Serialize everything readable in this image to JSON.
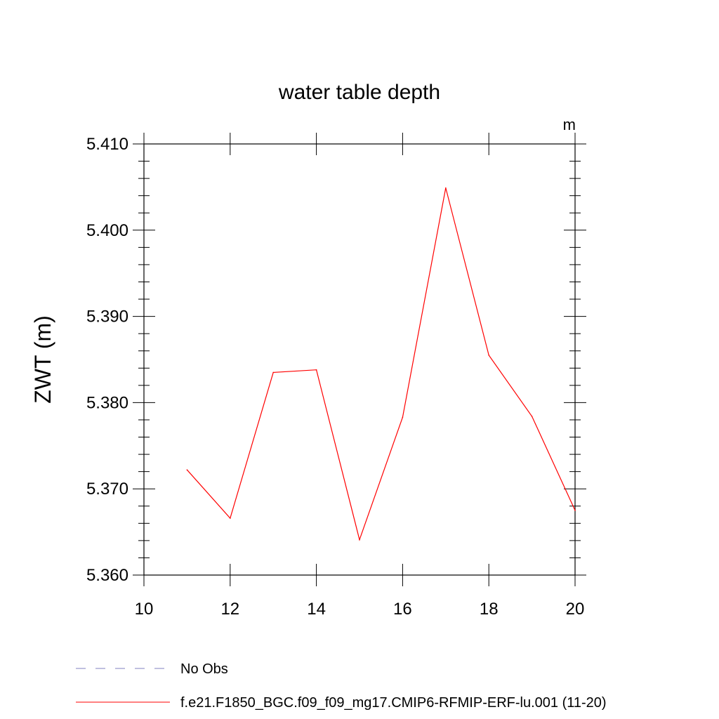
{
  "chart_data": {
    "type": "line",
    "title": "water table depth",
    "units": "m",
    "xlabel": "",
    "ylabel": "ZWT  (m)",
    "xlim": [
      10,
      20
    ],
    "ylim": [
      5.36,
      5.41
    ],
    "x_ticks": [
      10,
      12,
      14,
      16,
      18,
      20
    ],
    "x_tick_labels": [
      "10",
      "12",
      "14",
      "16",
      "18",
      "20"
    ],
    "y_ticks": [
      5.36,
      5.37,
      5.38,
      5.39,
      5.4,
      5.41
    ],
    "y_tick_labels": [
      "5.360",
      "5.370",
      "5.380",
      "5.390",
      "5.400",
      "5.410"
    ],
    "grid": false,
    "legend_position": "bottom",
    "series": [
      {
        "name": "No Obs",
        "color": "#8080c0",
        "dash": "dashed",
        "x": [],
        "y": []
      },
      {
        "name": "f.e21.F1850_BGC.f09_f09_mg17.CMIP6-RFMIP-ERF-lu.001 (11-20)",
        "color": "#ff0000",
        "dash": "solid",
        "x": [
          11,
          12,
          13,
          14,
          15,
          16,
          17,
          18,
          19,
          20
        ],
        "y": [
          5.3722,
          5.3666,
          5.3835,
          5.3838,
          5.3641,
          5.3783,
          5.4049,
          5.3855,
          5.3784,
          5.3675
        ]
      }
    ]
  }
}
